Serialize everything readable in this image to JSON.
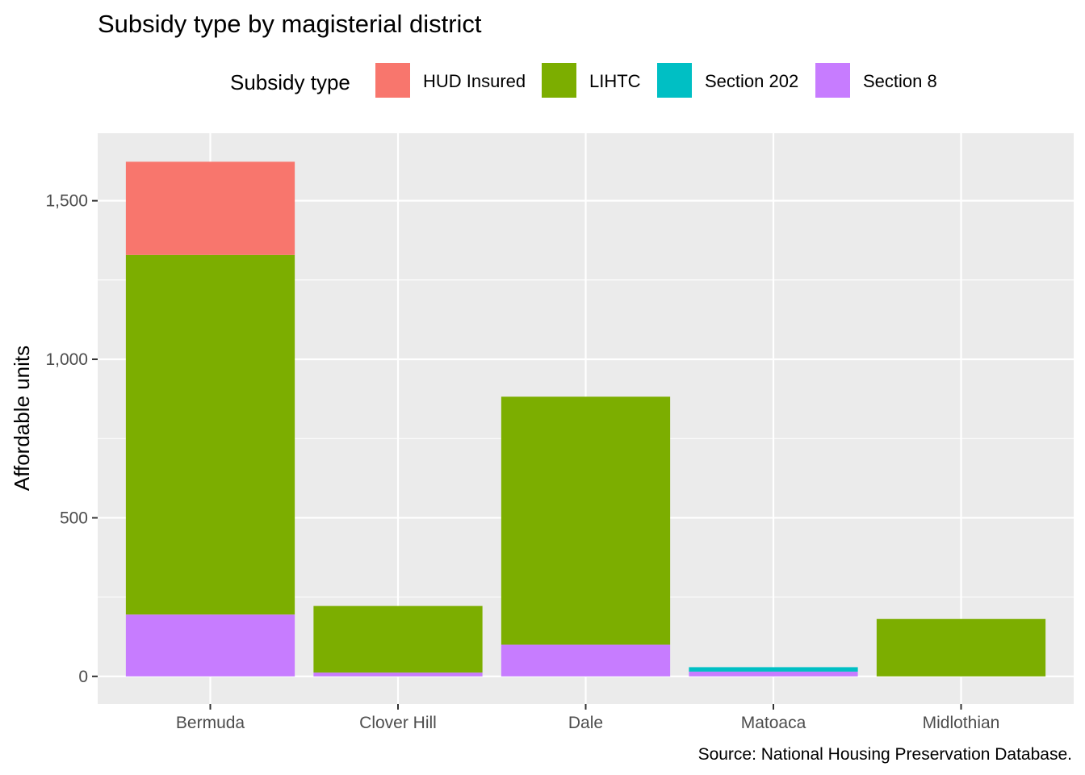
{
  "chart_data": {
    "type": "bar",
    "stacked": true,
    "title": "Subsidy type by magisterial district",
    "xlabel": "",
    "ylabel": "Affordable units",
    "caption": "Source: National Housing Preservation Database.",
    "categories": [
      "Bermuda",
      "Clover Hill",
      "Dale",
      "Matoaca",
      "Midlothian"
    ],
    "series": [
      {
        "name": "Section 8",
        "color": "#C77CFF",
        "values": [
          195,
          12,
          100,
          15,
          0
        ]
      },
      {
        "name": "Section 202",
        "color": "#00BFC4",
        "values": [
          0,
          0,
          0,
          14,
          0
        ]
      },
      {
        "name": "LIHTC",
        "color": "#7CAE00",
        "values": [
          1134,
          210,
          782,
          0,
          181
        ]
      },
      {
        "name": "HUD Insured",
        "color": "#F8766D",
        "values": [
          294,
          0,
          0,
          0,
          0
        ]
      }
    ],
    "legend": {
      "title": "Subsidy type",
      "position": "top",
      "entries": [
        "HUD Insured",
        "LIHTC",
        "Section 202",
        "Section 8"
      ]
    },
    "yticks": [
      0,
      500,
      1000,
      1500
    ],
    "ytick_labels": [
      "0",
      "500",
      "1,000",
      "1,500"
    ],
    "ylim": [
      -87,
      1713
    ],
    "grid": true
  }
}
